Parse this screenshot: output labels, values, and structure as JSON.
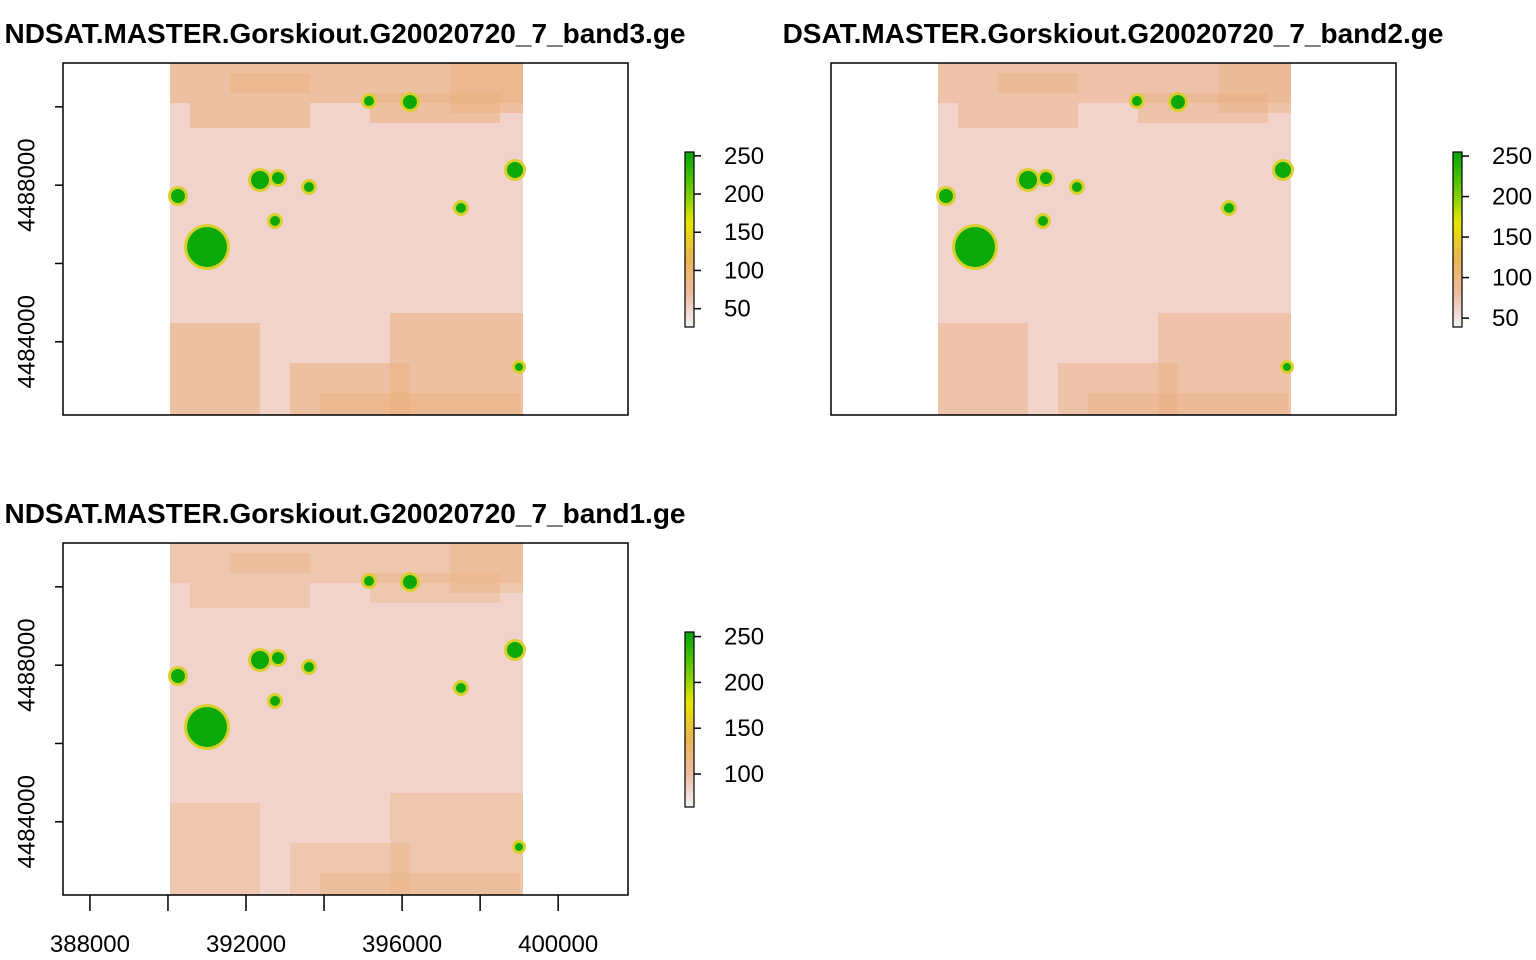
{
  "chart_data": [
    {
      "type": "raster",
      "title": "NDSAT.MASTER.Gorskiout.G20020720_7_band3.ge",
      "xlim": [
        387310,
        401790
      ],
      "ylim": [
        4482130,
        4491120
      ],
      "yticks": [
        4484000,
        4488000
      ],
      "yminor": [
        4486000,
        4490000
      ],
      "zlim": [
        26,
        255
      ],
      "zticks": [
        50,
        100,
        150,
        200,
        250
      ],
      "palette": [
        "#F2F2F2",
        "#EEB99F",
        "#EAB64E",
        "#E6E600",
        "#63C600",
        "#00A600"
      ]
    },
    {
      "type": "raster",
      "title": "DSAT.MASTER.Gorskiout.G20020720_7_band2.ge",
      "xlim": [
        387310,
        401790
      ],
      "ylim": [
        4482130,
        4491120
      ],
      "zlim": [
        39,
        255
      ],
      "zticks": [
        50,
        100,
        150,
        200,
        250
      ],
      "palette": [
        "#F2F2F2",
        "#EEB99F",
        "#EAB64E",
        "#E6E600",
        "#63C600",
        "#00A600"
      ]
    },
    {
      "type": "raster",
      "title": "NDSAT.MASTER.Gorskiout.G20020720_7_band1.ge",
      "xlim": [
        387310,
        401790
      ],
      "ylim": [
        4482130,
        4491120
      ],
      "xticks": [
        388000,
        392000,
        396000,
        400000
      ],
      "xminor": [
        390000,
        394000,
        398000
      ],
      "yticks": [
        4484000,
        4488000
      ],
      "yminor": [
        4486000,
        4490000
      ],
      "zlim": [
        64,
        255
      ],
      "zticks": [
        100,
        150,
        200,
        250
      ],
      "palette": [
        "#F2F2F2",
        "#EEB99F",
        "#EAB64E",
        "#E6E600",
        "#63C600",
        "#00A600"
      ]
    }
  ]
}
